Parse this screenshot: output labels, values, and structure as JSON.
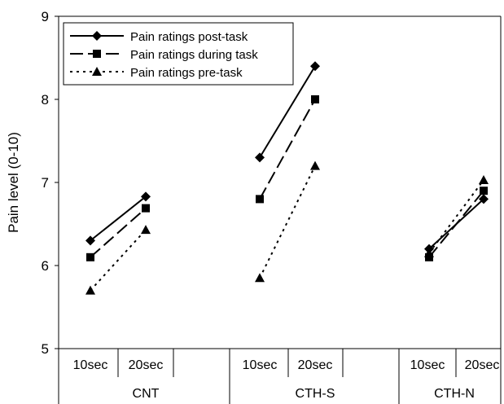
{
  "chart_data": {
    "type": "line",
    "ylabel": "Pain level (0-10)",
    "ylim": [
      5,
      9
    ],
    "yticks": [
      "5",
      "6",
      "7",
      "8",
      "9"
    ],
    "groups": [
      {
        "label": "CNT",
        "categories": [
          "10sec",
          "20sec"
        ]
      },
      {
        "label": "CTH-S",
        "categories": [
          "10sec",
          "20sec"
        ]
      },
      {
        "label": "CTH-N",
        "categories": [
          "10sec",
          "20sec"
        ]
      }
    ],
    "legend_position": "top-left",
    "series": [
      {
        "name": "Pain ratings post-task",
        "line_style": "solid",
        "marker": "diamond",
        "values": [
          [
            6.3,
            6.83
          ],
          [
            7.3,
            8.4
          ],
          [
            6.2,
            6.8
          ]
        ]
      },
      {
        "name": "Pain ratings during task",
        "line_style": "dashed",
        "marker": "square",
        "values": [
          [
            6.1,
            6.69
          ],
          [
            6.8,
            8.0
          ],
          [
            6.1,
            6.9
          ]
        ]
      },
      {
        "name": "Pain ratings pre-task",
        "line_style": "dotted",
        "marker": "triangle",
        "values": [
          [
            5.7,
            6.43
          ],
          [
            5.85,
            7.2
          ],
          [
            6.15,
            7.03
          ]
        ]
      }
    ]
  }
}
